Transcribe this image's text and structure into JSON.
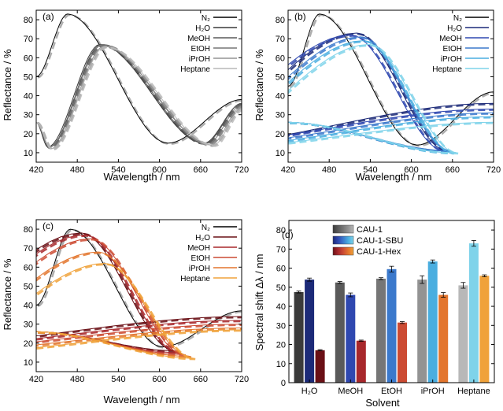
{
  "colors": {
    "n2": "#000000",
    "gray_shades": [
      "#3a3a3a",
      "#5a5a5a",
      "#767676",
      "#939393",
      "#b8b8b8"
    ],
    "blue_shades": [
      "#1c2a78",
      "#2f48b0",
      "#3b79cc",
      "#4aaee0",
      "#7fd3ea"
    ],
    "red_shades": [
      "#6a1016",
      "#a8282c",
      "#cc4b33",
      "#e3752d",
      "#f0a23a"
    ],
    "model_dashed": "#a0a0a0"
  },
  "chart_data": [
    {
      "panel": "(a)",
      "type": "line",
      "xlabel": "Wavelength / nm",
      "ylabel": "Reflectance / %",
      "xlim": [
        420,
        720
      ],
      "ylim": [
        5,
        85
      ],
      "xticks": [
        420,
        480,
        540,
        600,
        660,
        720
      ],
      "yticks": [
        10,
        20,
        30,
        40,
        50,
        60,
        70,
        80
      ],
      "legend_position": "top-right",
      "legend": [
        "N₂",
        "H₂O",
        "MeOH",
        "EtOH",
        "iPrOH",
        "Heptane"
      ],
      "palette": "gray",
      "dashed_model_fits": true,
      "series": [
        {
          "name": "N₂",
          "peak_nm": 466,
          "peak_pct": 83,
          "min_nm": 612,
          "min_pct": 15,
          "start_pct": 50,
          "end_pct": 38
        },
        {
          "name": "H₂O",
          "peak_nm": 513,
          "peak_pct": 67,
          "min_nm": 437,
          "min_pct": 13,
          "end_pct": 36
        },
        {
          "name": "MeOH",
          "peak_nm": 515,
          "peak_pct": 67,
          "min_nm": 439,
          "min_pct": 13,
          "end_pct": 36
        },
        {
          "name": "EtOH",
          "peak_nm": 517,
          "peak_pct": 67,
          "min_nm": 440,
          "min_pct": 13,
          "end_pct": 35
        },
        {
          "name": "iPrOH",
          "peak_nm": 519,
          "peak_pct": 66,
          "min_nm": 441,
          "min_pct": 12,
          "end_pct": 34
        },
        {
          "name": "Heptane",
          "peak_nm": 521,
          "peak_pct": 66,
          "min_nm": 442,
          "min_pct": 12,
          "end_pct": 33
        }
      ]
    },
    {
      "panel": "(b)",
      "type": "line",
      "xlabel": "Wavelength / nm",
      "ylabel": "Reflectance / %",
      "xlim": [
        420,
        720
      ],
      "ylim": [
        5,
        85
      ],
      "xticks": [
        420,
        480,
        540,
        600,
        660,
        720
      ],
      "yticks": [
        10,
        20,
        30,
        40,
        50,
        60,
        70,
        80
      ],
      "legend_position": "top-right",
      "legend": [
        "N₂",
        "H₂O",
        "MeOH",
        "EtOH",
        "iPrOH",
        "Heptane"
      ],
      "palette": "blue",
      "dashed_model_fits": true,
      "series": [
        {
          "name": "N₂",
          "peak_nm": 466,
          "peak_pct": 83,
          "min_nm": 608,
          "min_pct": 14,
          "start_pct": 45,
          "end_pct": 42
        },
        {
          "name": "H₂O",
          "peak_nm": 520,
          "peak_pct": 73,
          "min_nm": 652,
          "min_pct": 11,
          "end_pct": 36
        },
        {
          "name": "MeOH",
          "peak_nm": 512,
          "peak_pct": 72,
          "min_nm": 648,
          "min_pct": 11,
          "end_pct": 33
        },
        {
          "name": "EtOH",
          "peak_nm": 526,
          "peak_pct": 71,
          "min_nm": 656,
          "min_pct": 11,
          "end_pct": 31
        },
        {
          "name": "iPrOH",
          "peak_nm": 530,
          "peak_pct": 69,
          "min_nm": 660,
          "min_pct": 10,
          "end_pct": 29
        },
        {
          "name": "Heptane",
          "peak_nm": 538,
          "peak_pct": 67,
          "min_nm": 666,
          "min_pct": 10,
          "end_pct": 26
        }
      ]
    },
    {
      "panel": "(c)",
      "type": "line",
      "xlabel": "Wavelength / nm",
      "ylabel": "Reflectance / %",
      "xlim": [
        420,
        720
      ],
      "ylim": [
        5,
        85
      ],
      "xticks": [
        420,
        480,
        540,
        600,
        660,
        720
      ],
      "yticks": [
        10,
        20,
        30,
        40,
        50,
        60,
        70,
        80
      ],
      "legend_position": "top-right",
      "legend": [
        "N₂",
        "H₂O",
        "MeOH",
        "EtOH",
        "iPrOH",
        "Heptane"
      ],
      "palette": "red",
      "dashed_model_fits": true,
      "series": [
        {
          "name": "N₂",
          "peak_nm": 470,
          "peak_pct": 80,
          "min_nm": 604,
          "min_pct": 18,
          "start_pct": 40,
          "end_pct": 37
        },
        {
          "name": "H₂O",
          "peak_nm": 486,
          "peak_pct": 78,
          "min_nm": 622,
          "min_pct": 16,
          "end_pct": 34
        },
        {
          "name": "MeOH",
          "peak_nm": 491,
          "peak_pct": 77,
          "min_nm": 628,
          "min_pct": 15,
          "end_pct": 32
        },
        {
          "name": "EtOH",
          "peak_nm": 500,
          "peak_pct": 75,
          "min_nm": 636,
          "min_pct": 14,
          "end_pct": 30
        },
        {
          "name": "iPrOH",
          "peak_nm": 510,
          "peak_pct": 68,
          "min_nm": 644,
          "min_pct": 13,
          "end_pct": 28
        },
        {
          "name": "Heptane",
          "peak_nm": 520,
          "peak_pct": 62,
          "min_nm": 650,
          "min_pct": 12,
          "end_pct": 27
        }
      ]
    },
    {
      "panel": "(d)",
      "type": "bar",
      "xlabel": "Solvent",
      "ylabel": "Spectral shift Δλ / nm",
      "ylim": [
        0,
        85
      ],
      "yticks": [
        0,
        10,
        20,
        30,
        40,
        50,
        60,
        70,
        80
      ],
      "categories": [
        "H₂O",
        "MeOH",
        "EtOH",
        "iPrOH",
        "Heptane"
      ],
      "legend_position": "top-left",
      "series": [
        {
          "name": "CAU-1",
          "values": [
            47.5,
            52.5,
            54.5,
            54,
            51
          ],
          "errors": [
            0.5,
            0.5,
            0.5,
            2,
            1.5
          ]
        },
        {
          "name": "CAU-1-SBU",
          "values": [
            54,
            46,
            59.5,
            63.5,
            73
          ],
          "errors": [
            0.8,
            1,
            1.5,
            0.8,
            1.5
          ]
        },
        {
          "name": "CAU-1-Hex",
          "values": [
            17,
            22,
            31.5,
            46,
            56
          ],
          "errors": [
            0.3,
            0.3,
            0.5,
            1.2,
            0.5
          ]
        }
      ]
    }
  ]
}
